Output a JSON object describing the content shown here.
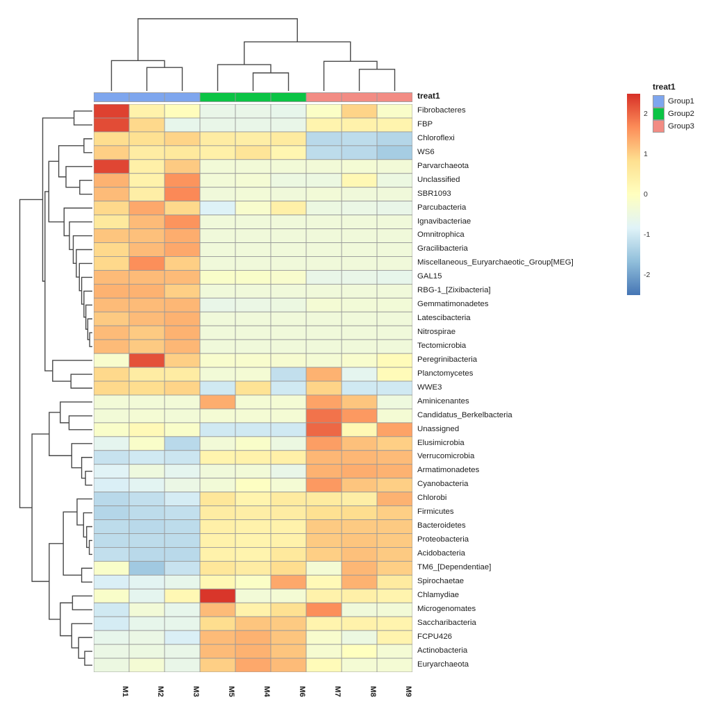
{
  "figure": {
    "annotation_title": "treat1",
    "legend": {
      "title": "treat1",
      "groups": [
        {
          "label": "Group1",
          "color": "#7EA6EE"
        },
        {
          "label": "Group2",
          "color": "#0BC445"
        },
        {
          "label": "Group3",
          "color": "#F28C84"
        }
      ],
      "colorbar_ticks": [
        "2",
        "1",
        "0",
        "-1",
        "-2"
      ]
    }
  },
  "chart_data": {
    "type": "heatmap",
    "title": "",
    "columns": [
      "M1",
      "M2",
      "M3",
      "M5",
      "M4",
      "M6",
      "M7",
      "M8",
      "M9"
    ],
    "column_groups": [
      "Group1",
      "Group1",
      "Group1",
      "Group2",
      "Group2",
      "Group2",
      "Group3",
      "Group3",
      "Group3"
    ],
    "rows": [
      "Fibrobacteres",
      "FBP",
      "Chloroflexi",
      "WS6",
      "Parvarchaeota",
      "Unclassified",
      "SBR1093",
      "Parcubacteria",
      "Ignavibacteriae",
      "Omnitrophica",
      "Gracilibacteria",
      "Miscellaneous_Euryarchaeotic_Group[MEG]",
      "GAL15",
      "RBG-1_[Zixibacteria]",
      "Gemmatimonadetes",
      "Latescibacteria",
      "Nitrospirae",
      "Tectomicrobia",
      "Peregrinibacteria",
      "Planctomycetes",
      "WWE3",
      "Aminicenantes",
      "Candidatus_Berkelbacteria",
      "Unassigned",
      "Elusimicrobia",
      "Verrucomicrobia",
      "Armatimonadetes",
      "Cyanobacteria",
      "Chlorobi",
      "Firmicutes",
      "Bacteroidetes",
      "Proteobacteria",
      "Acidobacteria",
      "TM6_[Dependentiae]",
      "Spirochaetae",
      "Chlamydiae",
      "Microgenomates",
      "Saccharibacteria",
      "FCPU426",
      "Actinobacteria",
      "Euryarchaeota"
    ],
    "values": [
      [
        2.35,
        0.35,
        0.05,
        -0.6,
        -0.6,
        -0.65,
        -0.1,
        0.95,
        -0.15
      ],
      [
        2.25,
        0.9,
        -0.65,
        -0.6,
        -0.6,
        -0.6,
        0.3,
        0.35,
        0.3
      ],
      [
        0.85,
        0.8,
        0.95,
        0.5,
        0.45,
        0.55,
        -1.25,
        -1.2,
        -1.3
      ],
      [
        1.0,
        0.5,
        0.6,
        0.4,
        0.7,
        0.25,
        -1.2,
        -1.25,
        -1.45
      ],
      [
        2.3,
        0.4,
        1.05,
        -0.35,
        -0.35,
        -0.35,
        -0.35,
        -0.3,
        -0.35
      ],
      [
        1.3,
        0.35,
        1.6,
        -0.35,
        -0.3,
        -0.5,
        -0.5,
        0.2,
        -0.5
      ],
      [
        1.2,
        0.45,
        1.7,
        -0.4,
        -0.35,
        -0.4,
        -0.35,
        -0.4,
        -0.4
      ],
      [
        0.9,
        1.4,
        0.9,
        -0.85,
        -0.2,
        0.4,
        -0.5,
        -0.55,
        -0.6
      ],
      [
        0.6,
        1.2,
        1.6,
        -0.4,
        -0.4,
        -0.4,
        -0.4,
        -0.4,
        -0.4
      ],
      [
        1.1,
        1.15,
        1.35,
        -0.4,
        -0.4,
        -0.4,
        -0.4,
        -0.4,
        -0.4
      ],
      [
        0.9,
        1.2,
        1.4,
        -0.4,
        -0.4,
        -0.4,
        -0.4,
        -0.4,
        -0.4
      ],
      [
        0.9,
        1.65,
        1.0,
        -0.4,
        -0.4,
        -0.4,
        -0.4,
        -0.4,
        -0.4
      ],
      [
        1.2,
        1.2,
        1.2,
        -0.15,
        -0.15,
        -0.2,
        -0.6,
        -0.6,
        -0.65
      ],
      [
        1.3,
        1.3,
        1.0,
        -0.4,
        -0.4,
        -0.4,
        -0.4,
        -0.4,
        -0.4
      ],
      [
        1.2,
        1.2,
        1.25,
        -0.6,
        -0.55,
        -0.5,
        -0.3,
        -0.35,
        -0.35
      ],
      [
        1.05,
        1.2,
        1.3,
        -0.4,
        -0.4,
        -0.4,
        -0.4,
        -0.4,
        -0.4
      ],
      [
        1.2,
        1.05,
        1.3,
        -0.4,
        -0.4,
        -0.4,
        -0.4,
        -0.4,
        -0.4
      ],
      [
        1.2,
        1.05,
        1.25,
        -0.4,
        -0.4,
        -0.4,
        -0.4,
        -0.4,
        -0.4
      ],
      [
        -0.2,
        2.2,
        1.0,
        -0.2,
        -0.2,
        -0.25,
        -0.3,
        -0.2,
        0.1
      ],
      [
        0.9,
        0.5,
        0.5,
        -0.35,
        -0.3,
        -1.15,
        1.3,
        -0.7,
        0.1
      ],
      [
        0.9,
        0.85,
        0.95,
        -1.0,
        0.75,
        -1.0,
        0.95,
        -1.0,
        -1.0
      ],
      [
        -0.35,
        -0.35,
        -0.35,
        1.35,
        -0.3,
        -0.3,
        1.45,
        1.1,
        -0.45
      ],
      [
        -0.35,
        -0.3,
        -0.35,
        -0.3,
        -0.3,
        -0.3,
        1.9,
        1.55,
        -0.3
      ],
      [
        -0.15,
        0.15,
        -0.15,
        -1.0,
        -1.0,
        -1.0,
        2.0,
        0.2,
        1.45
      ],
      [
        -0.7,
        -0.15,
        -1.25,
        -0.35,
        -0.15,
        -0.5,
        1.5,
        1.15,
        1.0
      ],
      [
        -1.1,
        -1.0,
        -1.05,
        0.3,
        0.35,
        0.4,
        1.25,
        1.25,
        1.2
      ],
      [
        -0.8,
        -0.45,
        -0.7,
        -0.4,
        -0.35,
        -0.6,
        1.3,
        1.35,
        1.3
      ],
      [
        -0.9,
        -0.75,
        -0.55,
        -0.35,
        -0.05,
        -0.3,
        1.55,
        1.1,
        1.0
      ],
      [
        -1.25,
        -1.15,
        -0.95,
        0.65,
        0.3,
        0.55,
        0.55,
        0.45,
        1.3
      ],
      [
        -1.3,
        -1.2,
        -1.15,
        0.5,
        0.45,
        0.5,
        0.8,
        0.85,
        1.0
      ],
      [
        -1.2,
        -1.25,
        -1.2,
        0.4,
        0.35,
        0.35,
        1.05,
        1.05,
        1.05
      ],
      [
        -1.2,
        -1.2,
        -1.2,
        0.35,
        0.3,
        0.35,
        1.05,
        1.1,
        1.05
      ],
      [
        -1.15,
        -1.25,
        -1.25,
        0.35,
        0.3,
        0.6,
        1.0,
        1.15,
        1.05
      ],
      [
        -0.15,
        -1.5,
        -1.1,
        0.65,
        0.5,
        0.85,
        -0.3,
        1.25,
        1.0
      ],
      [
        -0.9,
        -0.75,
        -0.65,
        0.2,
        -0.1,
        1.4,
        0.15,
        1.3,
        0.55
      ],
      [
        -0.15,
        -0.7,
        0.2,
        2.45,
        -0.35,
        -0.3,
        0.35,
        0.4,
        0.3
      ],
      [
        -1.0,
        -0.35,
        -0.65,
        1.2,
        0.35,
        0.8,
        1.65,
        -0.4,
        -0.35
      ],
      [
        -0.95,
        -0.65,
        -0.65,
        0.85,
        1.1,
        1.05,
        0.3,
        0.35,
        0.3
      ],
      [
        -0.65,
        -0.55,
        -0.9,
        1.2,
        1.3,
        1.1,
        -0.2,
        -0.5,
        0.3
      ],
      [
        -0.55,
        -0.5,
        -0.6,
        1.2,
        1.3,
        1.1,
        -0.25,
        0.0,
        -0.3
      ],
      [
        -0.5,
        -0.3,
        -0.6,
        1.0,
        1.4,
        1.2,
        0.1,
        -0.3,
        -0.3
      ]
    ],
    "value_domain": [
      -2.5,
      2.5
    ],
    "palette_low_to_high": [
      "#4575B4",
      "#91BFDB",
      "#E0F3F8",
      "#FFFFBF",
      "#FEE090",
      "#FC8D59",
      "#D73027"
    ],
    "cell_border_color": "#999999",
    "dendrogram_color": "#474747",
    "column_dendrogram": {
      "h": 1.0,
      "c": [
        {
          "h": 0.42,
          "c": [
            0,
            {
              "h": 0.325,
              "c": [
                1,
                2
              ]
            }
          ]
        },
        {
          "h": 0.68,
          "c": [
            {
              "h": 0.365,
              "c": [
                3,
                {
                  "h": 0.25,
                  "c": [
                    4,
                    5
                  ]
                }
              ]
            },
            {
              "h": 0.41,
              "c": [
                6,
                {
                  "h": 0.3,
                  "c": [
                    7,
                    8
                  ]
                }
              ]
            }
          ]
        }
      ]
    },
    "row_dendrogram": {
      "h": 0.95,
      "c": [
        {
          "h": 0.65,
          "c": [
            {
              "h": 0.24,
              "c": [
                0,
                1
              ]
            },
            {
              "h": 0.62,
              "c": [
                {
                  "h": 0.57,
                  "c": [
                    {
                      "h": 0.44,
                      "c": [
                        {
                          "h": 0.11,
                          "c": [
                            2,
                            3
                          ]
                        },
                        {
                          "h": 0.345,
                          "c": [
                            4,
                            {
                              "h": 0.165,
                              "c": [
                                5,
                                6
                              ]
                            }
                          ]
                        }
                      ]
                    },
                    {
                      "h": 0.37,
                      "c": [
                        7,
                        {
                          "h": 0.3,
                          "c": [
                            8,
                            {
                              "h": 0.25,
                              "c": [
                                9,
                                {
                                  "h": 0.21,
                                  "c": [
                                    10,
                                    {
                                      "h": 0.17,
                                      "c": [
                                        11,
                                        {
                                          "h": 0.14,
                                          "c": [
                                            12,
                                            {
                                              "h": 0.11,
                                              "c": [
                                                13,
                                                {
                                                  "h": 0.085,
                                                  "c": [
                                                    14,
                                                    {
                                                      "h": 0.06,
                                                      "c": [
                                                        15,
                                                        {
                                                          "h": 0.035,
                                                          "c": [
                                                            16,
                                                            17
                                                          ]
                                                        }
                                                      ]
                                                    }
                                                  ]
                                                }
                                              ]
                                            }
                                          ]
                                        }
                                      ]
                                    }
                                  ]
                                }
                              ]
                            }
                          ]
                        }
                      ]
                    }
                  ]
                },
                {
                  "h": 0.52,
                  "c": [
                    18,
                    {
                      "h": 0.28,
                      "c": [
                        19,
                        20
                      ]
                    }
                  ]
                }
              ]
            }
          ]
        },
        {
          "h": 0.79,
          "c": [
            {
              "h": 0.565,
              "c": [
                {
                  "h": 0.42,
                  "c": [
                    21,
                    {
                      "h": 0.305,
                      "c": [
                        22,
                        23
                      ]
                    }
                  ]
                },
                {
                  "h": 0.27,
                  "c": [
                    24,
                    {
                      "h": 0.14,
                      "c": [
                        25,
                        {
                          "h": 0.09,
                          "c": [
                            26,
                            27
                          ]
                        }
                      ]
                    }
                  ]
                }
              ]
            },
            {
              "h": 0.565,
              "c": [
                {
                  "h": 0.38,
                  "c": [
                    {
                      "h": 0.2,
                      "c": [
                        28,
                        {
                          "h": 0.115,
                          "c": [
                            29,
                            {
                              "h": 0.075,
                              "c": [
                                30,
                                {
                                  "h": 0.04,
                                  "c": [
                                    31,
                                    32
                                  ]
                                }
                              ]
                            }
                          ]
                        }
                      ]
                    },
                    {
                      "h": 0.14,
                      "c": [
                        33,
                        34
                      ]
                    }
                  ]
                },
                {
                  "h": 0.42,
                  "c": [
                    {
                      "h": 0.26,
                      "c": [
                        35,
                        36
                      ]
                    },
                    {
                      "h": 0.27,
                      "c": [
                        37,
                        {
                          "h": 0.18,
                          "c": [
                            38,
                            {
                              "h": 0.1,
                              "c": [
                                39,
                                40
                              ]
                            }
                          ]
                        }
                      ]
                    }
                  ]
                }
              ]
            }
          ]
        }
      ]
    }
  }
}
